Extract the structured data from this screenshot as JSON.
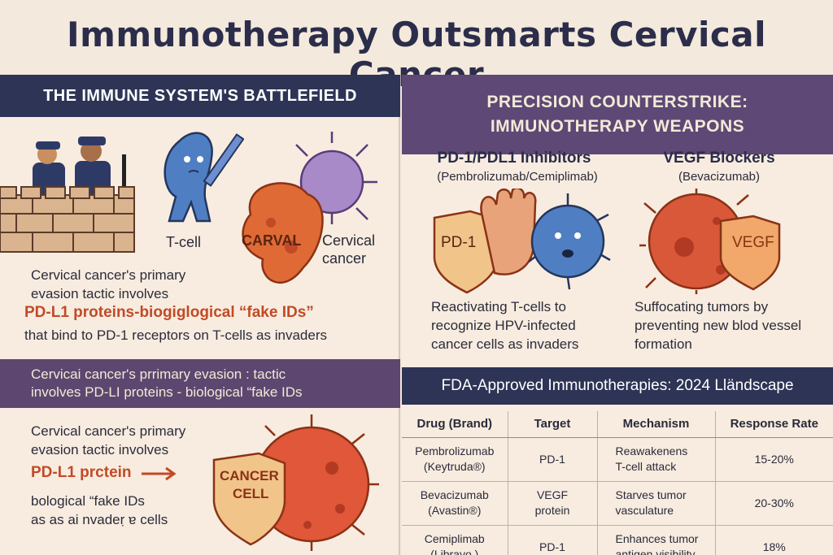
{
  "title": "Immunotherapy Outsmarts Cervical Cancer",
  "left": {
    "header": "THE IMMUNE SYSTEM'S BATTLEFIELD",
    "labels": {
      "tcell": "T-cell",
      "carval": "CARVAL",
      "cervical": "Cervical",
      "cancer": "cancer"
    },
    "text": {
      "line1": "Cervical cancer's primary",
      "line2": "evasion tactic involves",
      "line3": "PD-L1 proteins-biogiglogical “fake IDs”",
      "line4": "that bind to PD-1 receptors on T-cells as invaders"
    },
    "mid": {
      "line1": "Cervicai cancer's prrimary evasion :   tactic",
      "line2": "involves PD-LI proteins - biological “fake IDs"
    },
    "bottom": {
      "line1": "Cervical cancer's primary",
      "line2": "evasion tactic involves",
      "line3": "PD-L1 prctein",
      "line4": "bological “fake IDs",
      "line5": "as as ai nvadeṛ ɐ cells",
      "cell_label_1": "CANCER",
      "cell_label_2": "CELL"
    }
  },
  "right": {
    "header_line1": "PRECISION COUNTERSTRIKE:",
    "header_line2": "IMMUNOTHERAPY WEAPONS",
    "pd1": {
      "title": "PD-1/PDL1 Inhibitors",
      "subtitle": "(Pembrolizumab/Cemiplimab)",
      "shield_label": "PD-1",
      "desc1": "Reactivating T-cells to",
      "desc2": "recognize HPV-infected",
      "desc3": "cancer cells as invaders"
    },
    "vegf": {
      "title": "VEGF Blockers",
      "subtitle": "(Bevacizumab)",
      "shield_label": "VEGF",
      "desc1": "Suffocating tumors by",
      "desc2": "preventing new blod vessel",
      "desc3": "formation"
    },
    "table": {
      "title": "FDA-Approved Immunotherapies: 2024 Lländscape",
      "headers": [
        "Drug (Brand)",
        "Target",
        "Mechanism",
        "Response Rate"
      ],
      "rows": [
        {
          "drug1": "Pembrolizumab",
          "drug2": "(Keytruda®)",
          "target1": "PD-1",
          "target2": "",
          "mech1": "Reawakenens",
          "mech2": "T-cell attack",
          "rate": "15-20%"
        },
        {
          "drug1": "Bevacizumab",
          "drug2": "(Avastin®)",
          "target1": "VEGF",
          "target2": "protein",
          "mech1": "Starves tumor",
          "mech2": "vasculature",
          "rate": "20-30%"
        },
        {
          "drug1": "Cemiplimab",
          "drug2": "(Librayo )",
          "target1": "PD-1",
          "target2": "",
          "mech1": "Enhances tumor",
          "mech2": "antigen visibility",
          "rate": "18%"
        }
      ]
    }
  }
}
